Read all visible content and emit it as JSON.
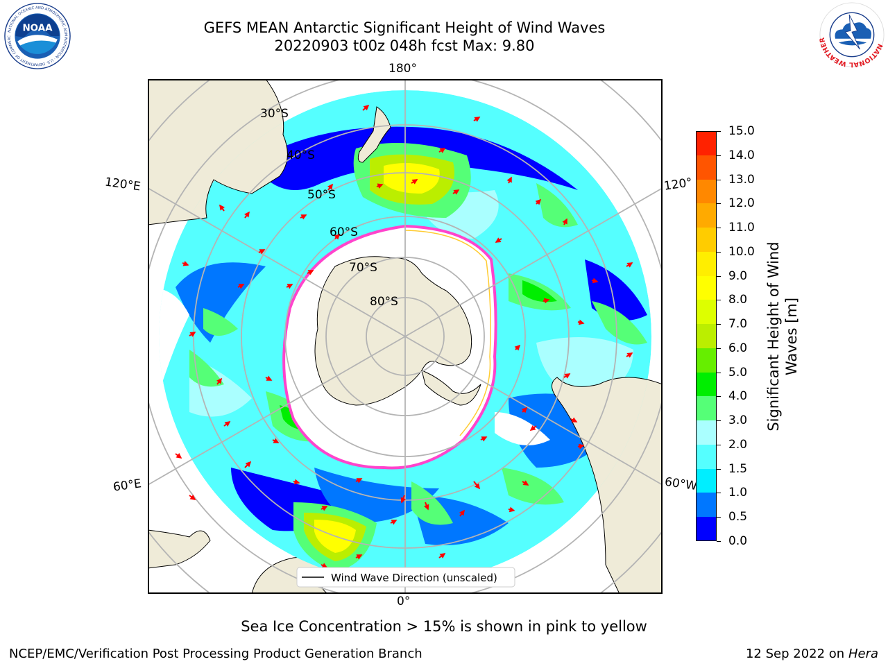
{
  "title": {
    "line1": "GEFS MEAN Antarctic Significant Height of Wind Waves",
    "line2": "20220903 t00z 048h fcst   Max: 9.80"
  },
  "logos": {
    "noaa": {
      "text": "NOAA",
      "ring_text": "NATIONAL OCEANIC AND ATMOSPHERIC ADMINISTRATION · U.S. DEPARTMENT OF COMMERCE"
    },
    "nws": {
      "ring_text": "NATIONAL WEATHER SERVICE"
    }
  },
  "map": {
    "projection": "south-polar-stereographic",
    "lon_labels": {
      "top": "180°",
      "bottom": "0°",
      "upper_left": "120°E",
      "upper_right": "120°",
      "lower_left": "60°E",
      "lower_right": "60°W"
    },
    "lat_labels": [
      "30°S",
      "40°S",
      "50°S",
      "60°S",
      "70°S",
      "80°S"
    ],
    "legend": "Wind Wave Direction (unscaled)",
    "colors": {
      "land": "#efebd8",
      "ice_edge": "#ff44cc",
      "ice_yellow": "#ffcc33",
      "arrow": "#ff0000",
      "grid": "#b4b4b4"
    }
  },
  "colorbar": {
    "label_line1": "Significant Height of Wind",
    "label_line2": "Waves [m]",
    "ticks": [
      "0.0",
      "0.5",
      "1.0",
      "1.5",
      "2.0",
      "3.0",
      "4.0",
      "5.0",
      "6.0",
      "7.0",
      "8.0",
      "9.0",
      "10.0",
      "11.0",
      "12.0",
      "13.0",
      "14.0",
      "15.0"
    ],
    "colors": [
      "#0000ff",
      "#0077ff",
      "#00eeff",
      "#55ffff",
      "#aaffff",
      "#55ff77",
      "#00ee00",
      "#66ee00",
      "#bbee00",
      "#ddff00",
      "#ffff00",
      "#ffee00",
      "#ffcc00",
      "#ffaa00",
      "#ff8800",
      "#ff5500",
      "#ff2200"
    ]
  },
  "note": "Sea Ice Concentration > 15% is shown in pink to yellow",
  "footer": {
    "left": "NCEP/EMC/Verification Post Processing Product Generation Branch",
    "date": "12 Sep 2022 on",
    "host": "Hera"
  }
}
